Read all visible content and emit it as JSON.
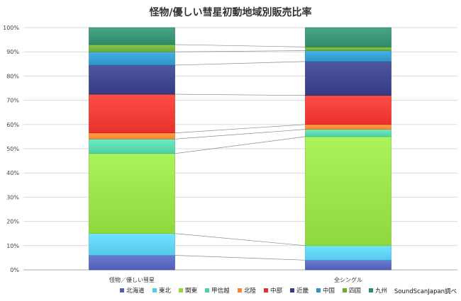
{
  "chart_data": {
    "type": "bar",
    "stacked": true,
    "percent_stacked": true,
    "title": "怪物/優しい彗星初動地域別販売比率",
    "categories": [
      "怪物／優しい彗星",
      "全シングル"
    ],
    "ylim": [
      0,
      100
    ],
    "y_ticks": [
      "0%",
      "10%",
      "20%",
      "30%",
      "40%",
      "50%",
      "60%",
      "70%",
      "80%",
      "90%",
      "100%"
    ],
    "grid": true,
    "legend_position": "bottom",
    "series_connector_lines": true,
    "series": [
      {
        "name": "北海道",
        "color": "#4F5FB5",
        "values": [
          6,
          4
        ]
      },
      {
        "name": "東北",
        "color": "#55C8EE",
        "values": [
          9,
          6
        ]
      },
      {
        "name": "関東",
        "color": "#8ED83E",
        "values": [
          33,
          45
        ]
      },
      {
        "name": "甲信越",
        "color": "#4FCFA6",
        "values": [
          6,
          3
        ]
      },
      {
        "name": "北陸",
        "color": "#F7842E",
        "values": [
          2.5,
          2
        ]
      },
      {
        "name": "中部",
        "color": "#E8312A",
        "values": [
          16,
          12
        ]
      },
      {
        "name": "近畿",
        "color": "#353B83",
        "values": [
          12,
          14
        ]
      },
      {
        "name": "中国",
        "color": "#2B95C7",
        "values": [
          5.5,
          4.5
        ]
      },
      {
        "name": "四国",
        "color": "#6DAA2F",
        "values": [
          3,
          1.5
        ]
      },
      {
        "name": "九州",
        "color": "#2F8A6A",
        "values": [
          7,
          8
        ]
      }
    ]
  },
  "footer": {
    "source": "SoundScanJapan調べ"
  }
}
